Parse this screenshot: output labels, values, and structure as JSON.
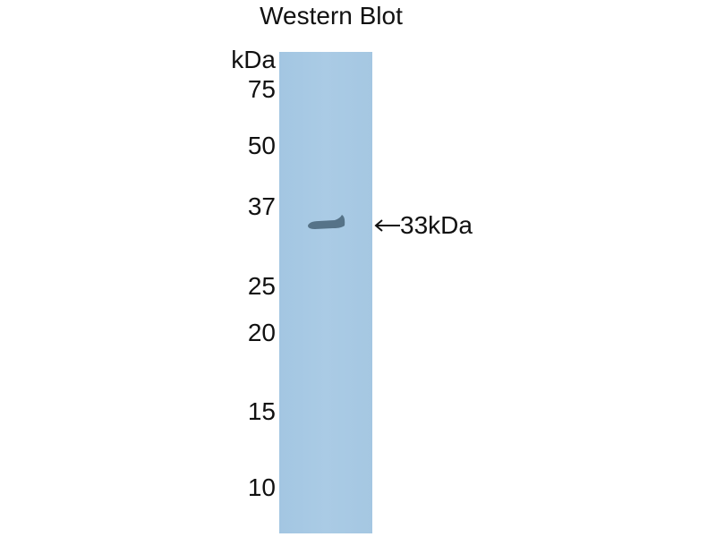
{
  "title": "Western Blot",
  "unit_label": "kDa",
  "markers": [
    "75",
    "50",
    "37",
    "25",
    "20",
    "15",
    "10"
  ],
  "band_annotation": "33kDa",
  "colors": {
    "membrane": "#a7c9e3",
    "band": "#4f6b80"
  }
}
